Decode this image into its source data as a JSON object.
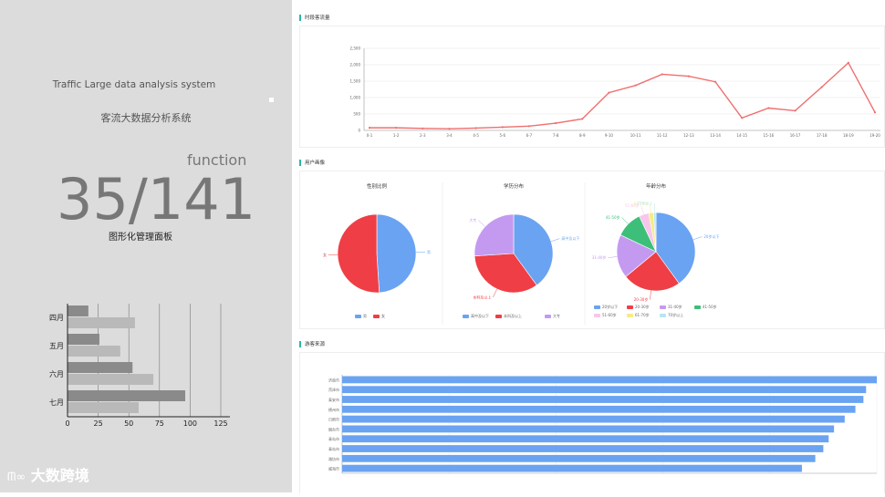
{
  "left": {
    "title_en": "Traffic Large data analysis system",
    "title_cn": "客流大数据分析系统",
    "function_label": "function",
    "big_number": "35/141",
    "subtitle": "图形化管理面板",
    "logo_text": "大数跨境"
  },
  "left_chart": {
    "type": "bar",
    "orientation": "horizontal",
    "categories": [
      "四月",
      "五月",
      "六月",
      "七月"
    ],
    "series": [
      {
        "values": [
          17,
          26,
          53,
          96
        ],
        "color": "#8a8a8a"
      },
      {
        "values": [
          55,
          43,
          70,
          58
        ],
        "color": "#b9b9b9"
      }
    ],
    "xticks": [
      "0",
      "25",
      "50",
      "75",
      "100",
      "125"
    ],
    "xlim": [
      0,
      125
    ]
  },
  "traffic_panel": {
    "title": "时段客流量",
    "chart_data": {
      "type": "line",
      "color": "#ef6f6f",
      "x": [
        "0-1",
        "1-2",
        "2-3",
        "3-4",
        "4-5",
        "5-6",
        "6-7",
        "7-8",
        "8-9",
        "9-10",
        "10-11",
        "11-12",
        "12-13",
        "13-14",
        "14-15",
        "15-16",
        "16-17",
        "17-18",
        "18-19",
        "19-20"
      ],
      "y": [
        80,
        80,
        60,
        50,
        70,
        100,
        130,
        220,
        350,
        1150,
        1370,
        1710,
        1650,
        1480,
        380,
        680,
        600,
        1320,
        2060,
        550
      ],
      "yticks": [
        "0",
        "500",
        "1,000",
        "1,500",
        "2,000",
        "2,500"
      ],
      "ylim": [
        0,
        2500
      ]
    }
  },
  "user_panel": {
    "title": "用户画像",
    "gender": {
      "title": "性别比例",
      "chart_data": {
        "type": "pie",
        "slices": [
          {
            "label": "男",
            "value": 49,
            "color": "#6aa3f2"
          },
          {
            "label": "女",
            "value": 51,
            "color": "#ef3e45"
          }
        ]
      }
    },
    "education": {
      "title": "学历分布",
      "chart_data": {
        "type": "pie",
        "slices": [
          {
            "label": "高中及以下",
            "value": 40,
            "color": "#6aa3f2"
          },
          {
            "label": "本科及以上",
            "value": 34,
            "color": "#ef3e45"
          },
          {
            "label": "大专",
            "value": 26,
            "color": "#c49af0"
          }
        ]
      }
    },
    "age": {
      "title": "年龄分布",
      "chart_data": {
        "type": "pie",
        "slices": [
          {
            "label": "20岁以下",
            "value": 40,
            "color": "#6aa3f2"
          },
          {
            "label": "20-30岁",
            "value": 24,
            "color": "#ef3e45"
          },
          {
            "label": "31-40岁",
            "value": 18,
            "color": "#c49af0"
          },
          {
            "label": "41-50岁",
            "value": 11,
            "color": "#3dbf79"
          },
          {
            "label": "51-60岁",
            "value": 4,
            "color": "#f7c6ea"
          },
          {
            "label": "61-70岁",
            "value": 2,
            "color": "#f5ec82"
          },
          {
            "label": "70岁以上",
            "value": 1,
            "color": "#b6e7ef"
          }
        ]
      }
    }
  },
  "source_panel": {
    "title": "游客来源",
    "chart_data": {
      "type": "bar",
      "orientation": "horizontal",
      "color": "#6aa3f2",
      "categories": [
        "济南市",
        "菏泽市",
        "泰安市",
        "德州市",
        "日照市",
        "烟台市",
        "青岛市",
        "青岛市",
        "潍坊市",
        "威海市"
      ],
      "values": [
        100,
        98,
        97.5,
        96,
        94,
        92,
        91,
        90,
        88.5,
        86
      ],
      "xlim": [
        0,
        100
      ]
    }
  }
}
